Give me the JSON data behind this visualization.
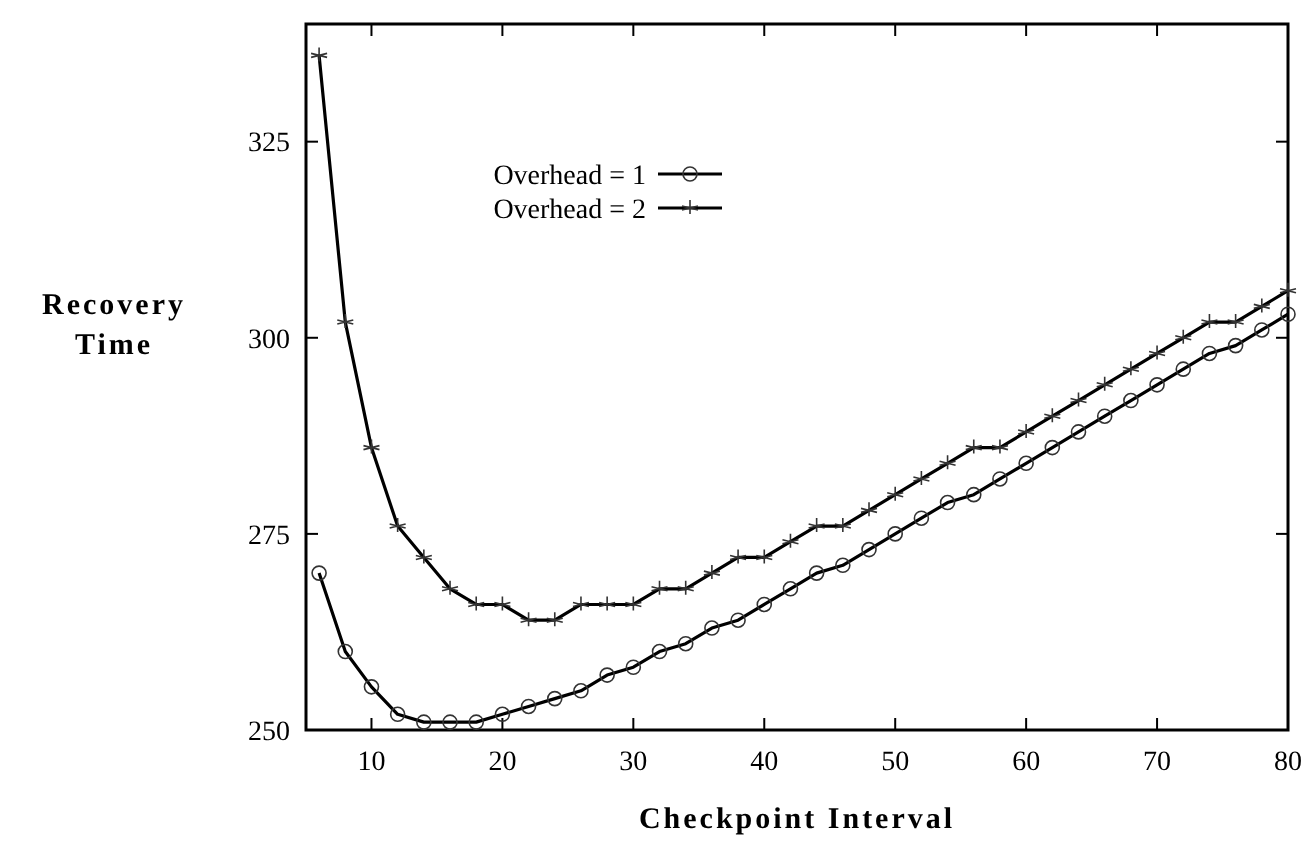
{
  "chart_data": {
    "type": "line",
    "xlabel": "Checkpoint Interval",
    "ylabel": "Recovery\nTime",
    "x": [
      6,
      8,
      10,
      12,
      14,
      16,
      18,
      20,
      22,
      24,
      26,
      28,
      30,
      32,
      34,
      36,
      38,
      40,
      42,
      44,
      46,
      48,
      50,
      52,
      54,
      56,
      58,
      60,
      62,
      64,
      66,
      68,
      70,
      72,
      74,
      76,
      78,
      80
    ],
    "series": [
      {
        "name": "Overhead = 1",
        "color": "#000000",
        "marker": "circle",
        "values": [
          270,
          260,
          255.5,
          252,
          251,
          251,
          251,
          252,
          253,
          254,
          255,
          257,
          258,
          260,
          261,
          263,
          264,
          266,
          268,
          270,
          271,
          273,
          275,
          277,
          279,
          280,
          282,
          284,
          286,
          288,
          290,
          292,
          294,
          296,
          298,
          299,
          301,
          303
        ]
      },
      {
        "name": "Overhead = 2",
        "color": "#000000",
        "marker": "cross",
        "values": [
          336,
          302,
          286,
          276,
          272,
          268,
          266,
          266,
          264,
          264,
          266,
          266,
          266,
          268,
          268,
          270,
          272,
          272,
          274,
          276,
          276,
          278,
          280,
          282,
          284,
          286,
          286,
          288,
          290,
          292,
          294,
          296,
          298,
          300,
          302,
          302,
          304,
          306
        ]
      }
    ],
    "xlim": [
      5,
      80
    ],
    "xticks": [
      10,
      20,
      30,
      40,
      50,
      60,
      70,
      80
    ],
    "ylim": [
      250,
      340
    ],
    "yticks": [
      250,
      275,
      300,
      325
    ],
    "legend": "top left",
    "grid": false,
    "line_style": "solid"
  }
}
